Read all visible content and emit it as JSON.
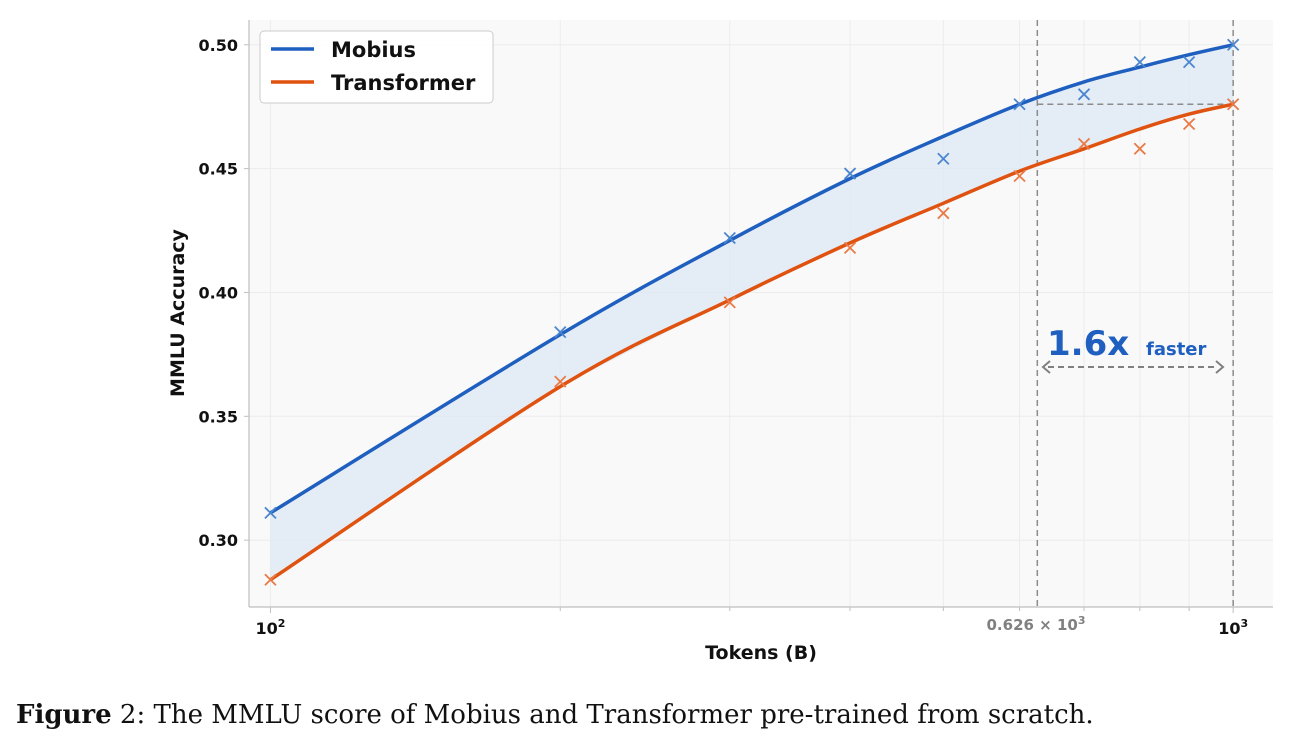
{
  "chart_data": {
    "type": "line",
    "xscale": "log",
    "xlabel": "Tokens (B)",
    "ylabel": "MMLU Accuracy",
    "xlim": [
      95,
      1100
    ],
    "ylim": [
      0.273,
      0.51
    ],
    "yticks": [
      "0.30",
      "0.35",
      "0.40",
      "0.45",
      "0.50"
    ],
    "ytick_values": [
      0.3,
      0.35,
      0.4,
      0.45,
      0.5
    ],
    "xticks": [
      {
        "value": 100,
        "base": "10",
        "exp": "2"
      },
      {
        "value": 1000,
        "base": "10",
        "exp": "3"
      }
    ],
    "grid": true,
    "legend_position": "top-left",
    "series": [
      {
        "name": "Mobius",
        "color": "#1f5fbf",
        "scatter_color": "#4a86d0",
        "x": [
          100,
          200,
          300,
          400,
          500,
          600,
          700,
          800,
          900,
          1000
        ],
        "y": [
          0.311,
          0.384,
          0.422,
          0.448,
          0.454,
          0.476,
          0.48,
          0.493,
          0.493,
          0.5
        ],
        "fit_y": [
          0.311,
          0.383,
          0.421,
          0.446,
          0.463,
          0.476,
          0.485,
          0.491,
          0.496,
          0.5
        ]
      },
      {
        "name": "Transformer",
        "color": "#e0520f",
        "scatter_color": "#ea7a45",
        "x": [
          100,
          200,
          300,
          400,
          500,
          600,
          700,
          800,
          900,
          1000
        ],
        "y": [
          0.284,
          0.364,
          0.396,
          0.418,
          0.432,
          0.447,
          0.46,
          0.458,
          0.468,
          0.476
        ],
        "fit_y": [
          0.284,
          0.362,
          0.397,
          0.42,
          0.436,
          0.449,
          0.458,
          0.466,
          0.472,
          0.476
        ]
      }
    ],
    "fill_between": {
      "color": "#dce8f4"
    },
    "annotation": {
      "big": "1.6x",
      "small": "faster",
      "ref_x": 626,
      "ref_label": "0.626 × 10",
      "ref_exp": "3",
      "end_x": 1000,
      "hline_y": 0.476
    }
  },
  "caption": {
    "figure_label": "Figure",
    "text": " 2: The MMLU score of Mobius and Transformer pre-trained from scratch."
  }
}
